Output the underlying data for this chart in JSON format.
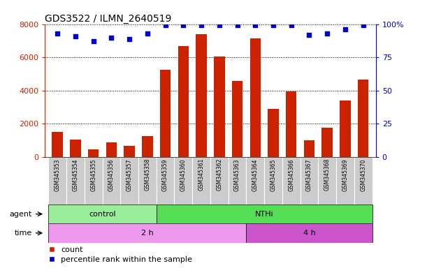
{
  "title": "GDS3522 / ILMN_2640519",
  "samples": [
    "GSM345353",
    "GSM345354",
    "GSM345355",
    "GSM345356",
    "GSM345357",
    "GSM345358",
    "GSM345359",
    "GSM345360",
    "GSM345361",
    "GSM345362",
    "GSM345363",
    "GSM345364",
    "GSM345365",
    "GSM345366",
    "GSM345367",
    "GSM345368",
    "GSM345369",
    "GSM345370"
  ],
  "counts": [
    1500,
    1050,
    450,
    900,
    680,
    1280,
    5250,
    6700,
    7400,
    6050,
    4600,
    7150,
    2900,
    3950,
    1000,
    1750,
    3400,
    4650
  ],
  "percentile_ranks": [
    93,
    91,
    87,
    90,
    89,
    93,
    99,
    99,
    99,
    99,
    99,
    99,
    99,
    99,
    92,
    93,
    96,
    99
  ],
  "ylim_left": [
    0,
    8000
  ],
  "ylim_right": [
    0,
    100
  ],
  "yticks_left": [
    0,
    2000,
    4000,
    6000,
    8000
  ],
  "yticks_right": [
    0,
    25,
    50,
    75,
    100
  ],
  "bar_color": "#cc2200",
  "dot_color": "#0000cc",
  "agent_groups": [
    {
      "label": "control",
      "start": 0,
      "end": 5,
      "color": "#99ee99"
    },
    {
      "label": "NTHi",
      "start": 6,
      "end": 17,
      "color": "#55dd55"
    }
  ],
  "time_groups": [
    {
      "label": "2 h",
      "start": 0,
      "end": 10,
      "color": "#ee99ee"
    },
    {
      "label": "4 h",
      "start": 11,
      "end": 17,
      "color": "#cc55cc"
    }
  ],
  "agent_label": "agent",
  "time_label": "time",
  "legend_count_label": "count",
  "legend_pct_label": "percentile rank within the sample",
  "background_color": "#ffffff",
  "tick_area_color": "#cccccc",
  "arrow_color": "#000000"
}
